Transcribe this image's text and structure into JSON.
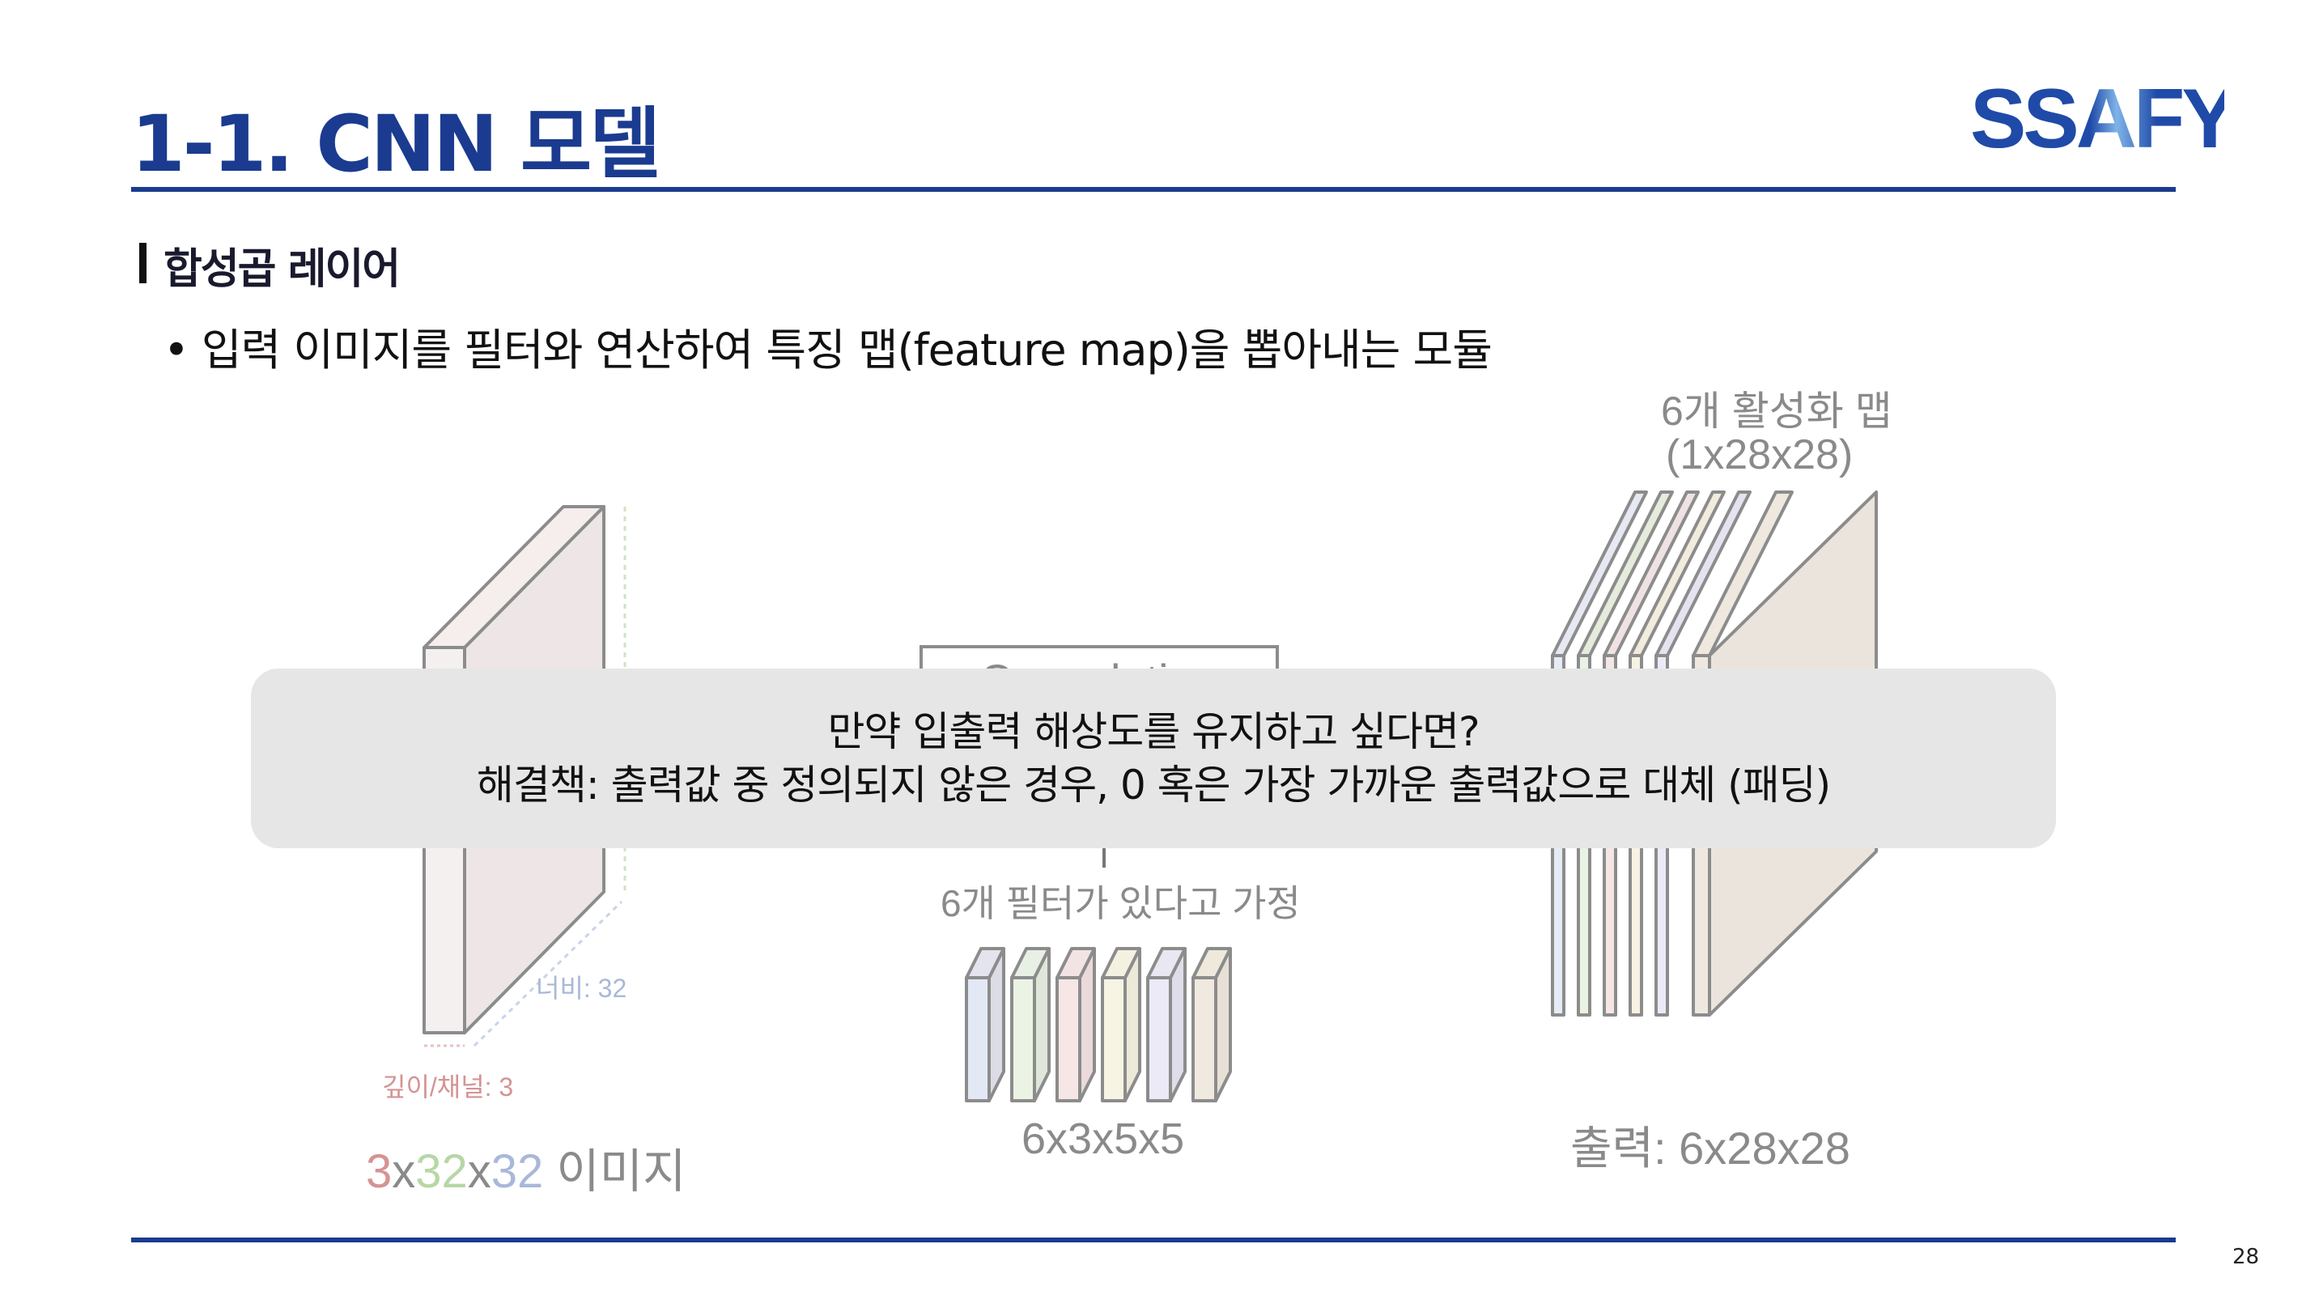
{
  "slide": {
    "title": "1-1. CNN 모델",
    "logo_text": "SSAFY",
    "section_title": "합성곱 레이어",
    "bullet_text": "입력 이미지를 필터와 연산하여 특징 맵(feature map)을 뽑아내는 모듈",
    "page_number": "28"
  },
  "diagram": {
    "activation_title": "6개 활성화 맵",
    "activation_dims": "(1x28x28)",
    "convolution_label": "Convolution",
    "filter_note": "6개 필터가 있다고 가정",
    "filter_dims": "6x3x5x5",
    "output_dims": "출력: 6x28x28",
    "width_label": "너비: 32",
    "depth_label": "깊이/채널: 3",
    "image_caption": {
      "depth": "3",
      "x1": "x",
      "height": "32",
      "x2": "x",
      "width": "32",
      "suffix": " 이미지"
    }
  },
  "overlay": {
    "line1": "만약 입출력 해상도를 유지하고 싶다면?",
    "line2": "해결책: 출력값 중 정의되지 않은 경우, 0 혹은 가장 가까운 출력값으로 대체 (패딩)"
  },
  "colors": {
    "brand_blue": "#1a3b8f",
    "depth_red": "#d59393",
    "height_green": "#b7d7a6",
    "width_blue": "#a9b8d8",
    "caption_gray": "#8a8a8a",
    "overlay_bg": "#e6e6e6"
  }
}
